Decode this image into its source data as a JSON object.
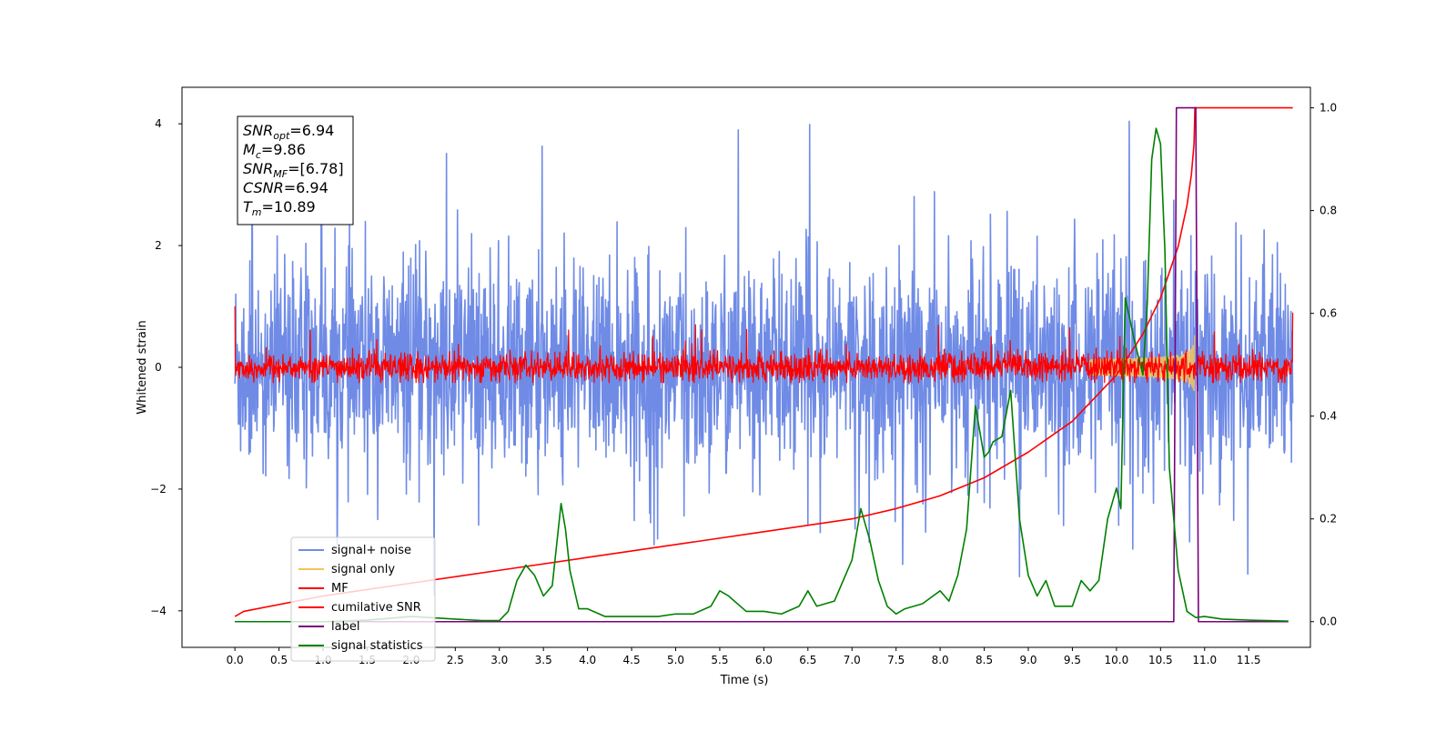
{
  "chart_data": {
    "type": "line",
    "xlabel": "Time (s)",
    "ylabel_left": "Whitened strain",
    "ylabel_right": "",
    "xlim": [
      -0.6,
      12.2
    ],
    "ylim_left": [
      -4.6,
      4.6
    ],
    "ylim_right": [
      -0.05,
      1.04
    ],
    "x_ticks": [
      0.0,
      0.5,
      1.0,
      1.5,
      2.0,
      2.5,
      3.0,
      3.5,
      4.0,
      4.5,
      5.0,
      5.5,
      6.0,
      6.5,
      7.0,
      7.5,
      8.0,
      8.5,
      9.0,
      9.5,
      10.0,
      10.5,
      11.0,
      11.5
    ],
    "x_tick_labels": [
      "0.0",
      "0.5",
      "1.0",
      "1.5",
      "2.0",
      "2.5",
      "3.0",
      "3.5",
      "4.0",
      "4.5",
      "5.0",
      "5.5",
      "6.0",
      "6.5",
      "7.0",
      "7.5",
      "8.0",
      "8.5",
      "9.0",
      "9.5",
      "10.0",
      "10.5",
      "11.0",
      "11.5"
    ],
    "y_ticks_left": [
      -4,
      -2,
      0,
      2,
      4
    ],
    "y_tick_labels_left": [
      "−4",
      "−2",
      "0",
      "2",
      "4"
    ],
    "y_ticks_right": [
      0.0,
      0.2,
      0.4,
      0.6,
      0.8,
      1.0
    ],
    "y_tick_labels_right": [
      "0.0",
      "0.2",
      "0.4",
      "0.6",
      "0.8",
      "1.0"
    ],
    "grid": false,
    "legend_position": "lower-left",
    "annotation_box": {
      "position": "top-left",
      "lines": [
        {
          "sym": "SNR",
          "sub": "opt",
          "val": "=6.94"
        },
        {
          "sym": "M",
          "sub": "c",
          "val": "=9.86"
        },
        {
          "sym": "SNR",
          "sub": "MF",
          "val": "=[6.78]"
        },
        {
          "sym": "CSNR",
          "sub": "",
          "val": "=6.94"
        },
        {
          "sym": "T",
          "sub": "m",
          "val": "=10.89"
        }
      ]
    },
    "series": [
      {
        "name": "signal+ noise",
        "axis": "left",
        "color": "#6f8be6",
        "style": "noise",
        "x_range": [
          0.0,
          12.0
        ],
        "amplitude_typical": 1.9,
        "amplitude_max": 4.2,
        "amplitude_min": -4.0
      },
      {
        "name": "signal only",
        "axis": "left",
        "color": "#f5c35a",
        "style": "chirp",
        "x_range": [
          9.7,
          10.9
        ],
        "amplitude_peak": 0.55,
        "merger_time": 10.89
      },
      {
        "name": "MF",
        "axis": "left",
        "color": "#ff0000",
        "style": "noise",
        "x_range": [
          0.0,
          12.0
        ],
        "amplitude_typical": 0.25,
        "amplitude_max": 0.7,
        "amplitude_min": -0.25,
        "edge_values": [
          1.0,
          0.9
        ]
      },
      {
        "name": "cumilative SNR",
        "axis": "right",
        "color": "#ff0000",
        "style": "line",
        "x": [
          0.0,
          0.1,
          1.0,
          2.0,
          3.0,
          4.0,
          5.0,
          6.0,
          7.0,
          7.5,
          8.0,
          8.5,
          9.0,
          9.5,
          10.0,
          10.3,
          10.5,
          10.7,
          10.8,
          10.85,
          10.88,
          10.89,
          12.0
        ],
        "values": [
          0.01,
          0.02,
          0.05,
          0.075,
          0.1,
          0.125,
          0.15,
          0.175,
          0.2,
          0.22,
          0.245,
          0.28,
          0.33,
          0.39,
          0.48,
          0.56,
          0.63,
          0.73,
          0.81,
          0.87,
          0.93,
          1.0,
          1.0
        ]
      },
      {
        "name": "label",
        "axis": "right",
        "color": "#7b007b",
        "style": "step",
        "x": [
          0.0,
          10.65,
          10.68,
          10.9,
          10.93,
          11.95
        ],
        "values": [
          0.0,
          0.0,
          1.0,
          1.0,
          0.0,
          0.0
        ]
      },
      {
        "name": "signal statistics",
        "axis": "right",
        "color": "#008000",
        "style": "line",
        "x": [
          0.0,
          0.5,
          1.0,
          1.5,
          2.0,
          2.5,
          2.8,
          3.0,
          3.1,
          3.2,
          3.3,
          3.4,
          3.5,
          3.6,
          3.7,
          3.75,
          3.8,
          3.9,
          4.0,
          4.2,
          4.5,
          4.8,
          5.0,
          5.2,
          5.4,
          5.5,
          5.6,
          5.8,
          6.0,
          6.2,
          6.4,
          6.5,
          6.6,
          6.8,
          7.0,
          7.1,
          7.2,
          7.3,
          7.4,
          7.5,
          7.6,
          7.8,
          8.0,
          8.1,
          8.2,
          8.3,
          8.4,
          8.5,
          8.55,
          8.6,
          8.7,
          8.8,
          8.9,
          9.0,
          9.1,
          9.2,
          9.3,
          9.5,
          9.6,
          9.7,
          9.8,
          9.9,
          10.0,
          10.05,
          10.1,
          10.2,
          10.3,
          10.35,
          10.4,
          10.45,
          10.5,
          10.55,
          10.6,
          10.7,
          10.8,
          10.9,
          11.0,
          11.2,
          11.5,
          11.95
        ],
        "values": [
          0.0,
          0.0,
          0.0,
          0.003,
          0.01,
          0.005,
          0.002,
          0.002,
          0.02,
          0.08,
          0.11,
          0.09,
          0.05,
          0.07,
          0.23,
          0.18,
          0.1,
          0.025,
          0.025,
          0.01,
          0.01,
          0.01,
          0.015,
          0.015,
          0.03,
          0.06,
          0.05,
          0.02,
          0.02,
          0.015,
          0.03,
          0.06,
          0.03,
          0.04,
          0.12,
          0.22,
          0.16,
          0.08,
          0.03,
          0.015,
          0.025,
          0.035,
          0.06,
          0.04,
          0.09,
          0.18,
          0.42,
          0.32,
          0.33,
          0.35,
          0.36,
          0.45,
          0.2,
          0.09,
          0.05,
          0.08,
          0.03,
          0.03,
          0.08,
          0.06,
          0.08,
          0.2,
          0.26,
          0.22,
          0.63,
          0.55,
          0.48,
          0.62,
          0.9,
          0.96,
          0.93,
          0.72,
          0.3,
          0.1,
          0.02,
          0.008,
          0.01,
          0.005,
          0.003,
          0.001
        ]
      }
    ]
  }
}
